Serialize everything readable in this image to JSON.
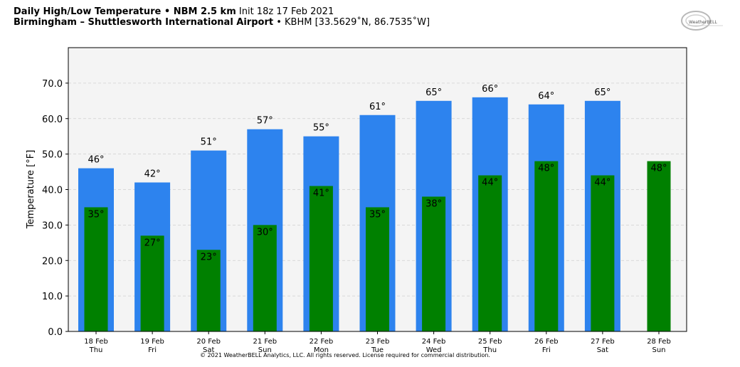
{
  "header": {
    "title_bold": "Daily High/Low Temperature • NBM 2.5 km",
    "init": "Init 18z 17 Feb 2021",
    "location_bold": "Birmingham – Shuttlesworth International Airport",
    "station": "• KBHM [33.5629˚N, 86.7535˚W]"
  },
  "logo": {
    "text": "WeatherBELL"
  },
  "footer": {
    "copyright": "© 2021 WeatherBELL Analytics, LLC. All rights reserved. License required for commercial distribution."
  },
  "colors": {
    "high": "#2d83ee",
    "low": "#008000",
    "plot_bg": "#f4f4f4"
  },
  "chart_data": {
    "type": "bar",
    "ylabel": "Temperature [°F]",
    "ylim": [
      0,
      80
    ],
    "yticks": [
      "0.0",
      "10.0",
      "20.0",
      "30.0",
      "40.0",
      "50.0",
      "60.0",
      "70.0"
    ],
    "grid": "horizontal dashed",
    "categories": [
      {
        "date": "18 Feb",
        "day": "Thu"
      },
      {
        "date": "19 Feb",
        "day": "Fri"
      },
      {
        "date": "20 Feb",
        "day": "Sat"
      },
      {
        "date": "21 Feb",
        "day": "Sun"
      },
      {
        "date": "22 Feb",
        "day": "Mon"
      },
      {
        "date": "23 Feb",
        "day": "Tue"
      },
      {
        "date": "24 Feb",
        "day": "Wed"
      },
      {
        "date": "25 Feb",
        "day": "Thu"
      },
      {
        "date": "26 Feb",
        "day": "Fri"
      },
      {
        "date": "27 Feb",
        "day": "Sat"
      },
      {
        "date": "28 Feb",
        "day": "Sun"
      }
    ],
    "series": [
      {
        "values": [
          46,
          42,
          51,
          57,
          55,
          61,
          65,
          66,
          64,
          65,
          null
        ],
        "labels": [
          "46°",
          "42°",
          "51°",
          "57°",
          "55°",
          "61°",
          "65°",
          "66°",
          "64°",
          "65°",
          ""
        ]
      },
      {
        "values": [
          35,
          27,
          23,
          30,
          41,
          35,
          38,
          44,
          48,
          44,
          48
        ],
        "labels": [
          "35°",
          "27°",
          "23°",
          "30°",
          "41°",
          "35°",
          "38°",
          "44°",
          "48°",
          "44°",
          "48°"
        ]
      }
    ]
  }
}
